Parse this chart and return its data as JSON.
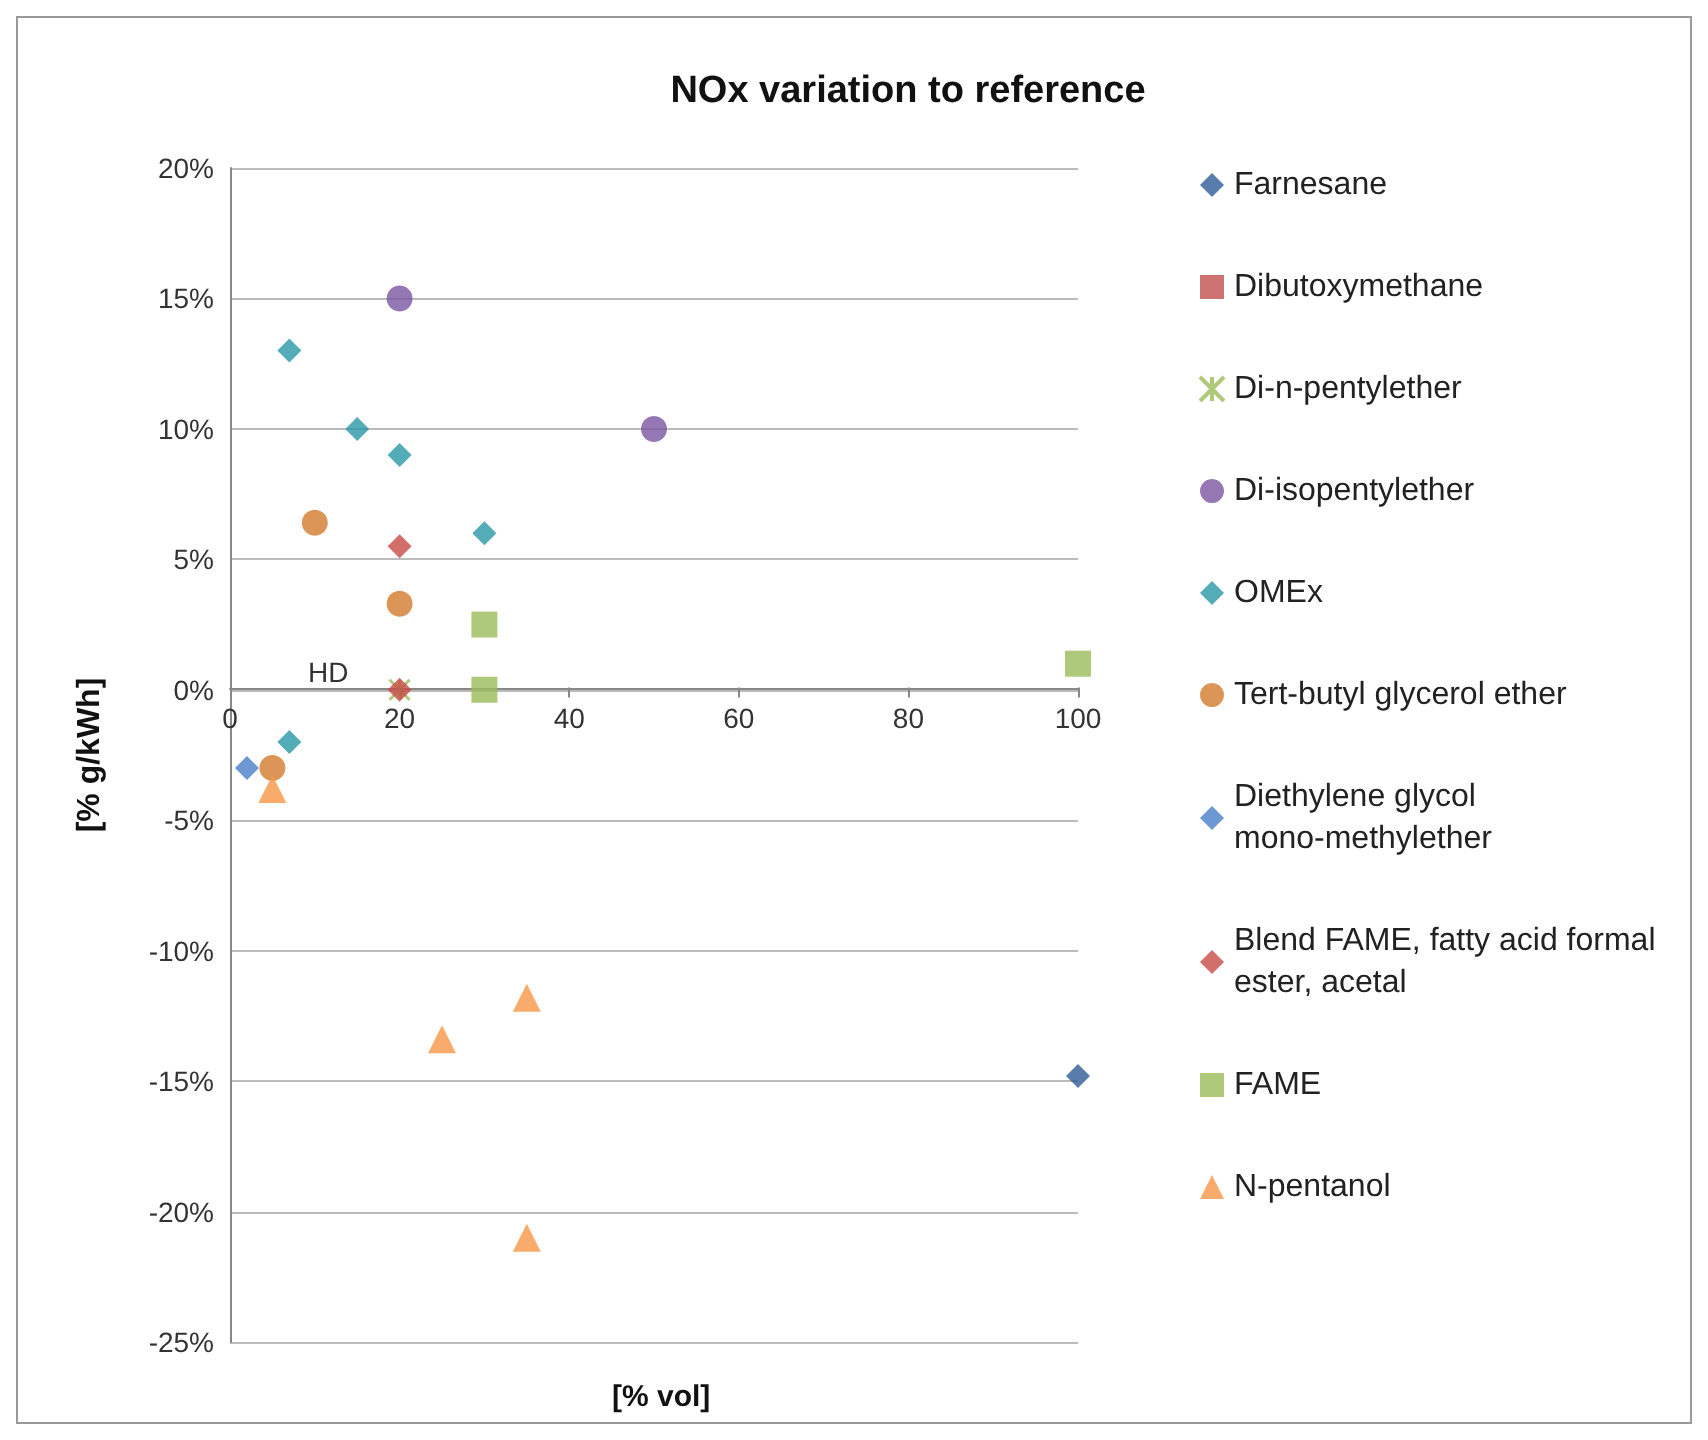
{
  "chart_data": {
    "type": "scatter",
    "title": "NOx variation to reference",
    "xlabel": "[% vol]",
    "ylabel": "[% g/kWh]",
    "xlim": [
      0,
      100
    ],
    "xticks": [
      0,
      20,
      40,
      60,
      80,
      100
    ],
    "ylim": [
      -25,
      20
    ],
    "yticks": [
      {
        "value": -25,
        "label": "-25%"
      },
      {
        "value": -20,
        "label": "-20%"
      },
      {
        "value": -15,
        "label": "-15%"
      },
      {
        "value": -10,
        "label": "-10%"
      },
      {
        "value": -5,
        "label": "-5%"
      },
      {
        "value": 0,
        "label": "0%"
      },
      {
        "value": 5,
        "label": "5%"
      },
      {
        "value": 10,
        "label": "10%"
      },
      {
        "value": 15,
        "label": "15%"
      },
      {
        "value": 20,
        "label": "20%"
      }
    ],
    "grid": "y",
    "legend": "right",
    "annotations": [
      "HD"
    ],
    "series": [
      {
        "name": "Farnesane",
        "color": "#2e5d99",
        "marker": "diamond",
        "x": [
          100
        ],
        "values": [
          -14.8
        ]
      },
      {
        "name": "Dibutoxymethane",
        "color": "#c0504d",
        "marker": "square"
      },
      {
        "name": "Di-n-pentylether",
        "color": "#9bbb59",
        "marker": "cross",
        "x": [
          20
        ],
        "values": [
          0
        ]
      },
      {
        "name": "Di-isopentylether",
        "color": "#7a56a0",
        "marker": "circle",
        "x": [
          20,
          50
        ],
        "values": [
          15,
          10
        ]
      },
      {
        "name": "OMEx",
        "color": "#2b97a8",
        "marker": "diamond",
        "x": [
          7,
          15,
          20,
          30,
          7
        ],
        "values": [
          13,
          10,
          9,
          6,
          -2
        ]
      },
      {
        "name": "Tert-butyl glycerol ether",
        "color": "#d27a2c",
        "marker": "circle",
        "x": [
          10,
          20,
          5
        ],
        "values": [
          6.4,
          3.3,
          -3
        ]
      },
      {
        "name": "Diethylene glycol mono-methylether",
        "color": "#4a7ec8",
        "marker": "diamond",
        "x": [
          2
        ],
        "values": [
          -3
        ]
      },
      {
        "name": "Blend FAME, fatty acid formal ester, acetal",
        "color": "#c84b45",
        "marker": "diamond",
        "x": [
          20,
          20
        ],
        "values": [
          5.5,
          0
        ]
      },
      {
        "name": "FAME",
        "color": "#9bbb59",
        "marker": "square",
        "x": [
          30,
          30,
          100
        ],
        "values": [
          2.5,
          0,
          1
        ]
      },
      {
        "name": "N-pentanol",
        "color": "#f79646",
        "marker": "triangle",
        "x": [
          5,
          25,
          35,
          35
        ],
        "values": [
          -3.8,
          -13.4,
          -11.8,
          -21
        ]
      }
    ]
  }
}
